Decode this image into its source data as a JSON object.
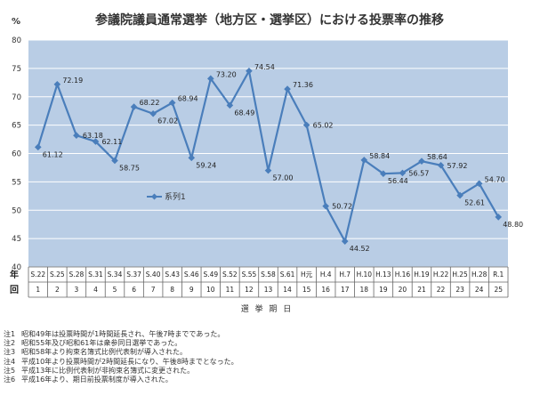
{
  "chart_data": {
    "type": "line",
    "title": "参議院議員通常選挙（地方区・選挙区）における投票率の推移",
    "ylabel": "%",
    "xlabel": "選 挙 期 日",
    "ylim": [
      40,
      80
    ],
    "yticks": [
      40,
      45,
      50,
      55,
      60,
      65,
      70,
      75,
      80
    ],
    "grid": true,
    "legend_position": "left-middle",
    "row_labels": {
      "year": "年",
      "round": "回"
    },
    "categories": [
      "S.22",
      "S.25",
      "S.28",
      "S.31",
      "S.34",
      "S.37",
      "S.40",
      "S.43",
      "S.46",
      "S.49",
      "S.52",
      "S.55",
      "S.58",
      "S.61",
      "H元",
      "H.4",
      "H.7",
      "H.10",
      "H.13",
      "H.16",
      "H.19",
      "H.22",
      "H.25",
      "H.28",
      "R.1"
    ],
    "rounds": [
      "1",
      "2",
      "3",
      "4",
      "5",
      "6",
      "7",
      "8",
      "9",
      "10",
      "11",
      "12",
      "13",
      "14",
      "15",
      "16",
      "17",
      "18",
      "19",
      "20",
      "21",
      "22",
      "23",
      "24",
      "25"
    ],
    "series": [
      {
        "name": "系列1",
        "color": "#4a7ebb",
        "values": [
          61.12,
          72.19,
          63.18,
          62.11,
          58.75,
          68.22,
          67.02,
          68.94,
          59.24,
          73.2,
          68.49,
          74.54,
          57.0,
          71.36,
          65.02,
          50.72,
          44.52,
          58.84,
          56.44,
          56.57,
          58.64,
          57.92,
          52.61,
          54.7,
          48.8
        ],
        "labels": [
          "61.12",
          "72.19",
          "63.18",
          "62.11",
          "58.75",
          "68.22",
          "67.02",
          "68.94",
          "59.24",
          "73.20",
          "68.49",
          "74.54",
          "57.00",
          "71.36",
          "65.02",
          "50.72",
          "44.52",
          "58.84",
          "56.44",
          "56.57",
          "58.64",
          "57.92",
          "52.61",
          "54.70",
          "48.80"
        ]
      }
    ],
    "colors": {
      "plot_background": "#b9cde5",
      "line": "#4a7ebb",
      "grid": "#ffffff"
    }
  },
  "notes": [
    {
      "label": "注1",
      "text": "昭和49年は投票時間が1時間延長され、午後7時までであった。"
    },
    {
      "label": "注2",
      "text": "昭和55年及び昭和61年は衆参同日選挙であった。"
    },
    {
      "label": "注3",
      "text": "昭和58年より拘束名簿式比例代表制が導入された。"
    },
    {
      "label": "注4",
      "text": "平成10年より投票時間が2時間延長になり、午後8時までとなった。"
    },
    {
      "label": "注5",
      "text": "平成13年に比例代表制が非拘束名簿式に変更された。"
    },
    {
      "label": "注6",
      "text": "平成16年より、期日前投票制度が導入された。"
    }
  ]
}
